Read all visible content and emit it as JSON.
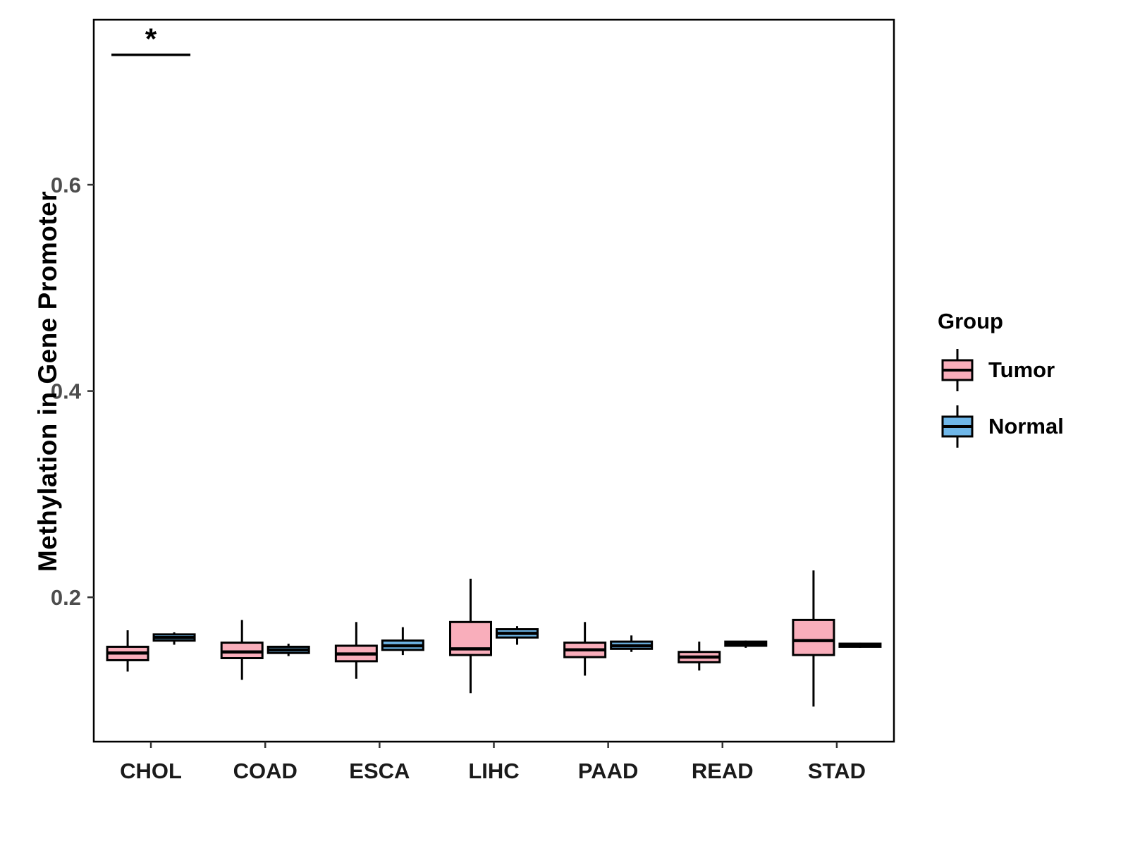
{
  "chart_data": {
    "type": "boxplot",
    "title": "",
    "xlabel": "",
    "ylabel": "Methylation in Gene Promoter",
    "ylim": [
      0.06,
      0.76
    ],
    "yticks": [
      0.2,
      0.4,
      0.6
    ],
    "ytick_labels": [
      "0.2",
      "0.4",
      "0.6"
    ],
    "categories": [
      "CHOL",
      "COAD",
      "ESCA",
      "LIHC",
      "PAAD",
      "READ",
      "STAD"
    ],
    "legend_title": "Group",
    "legend_position": "right",
    "grid": false,
    "series": [
      {
        "name": "Tumor",
        "color": "#F9AEBB",
        "stats": [
          {
            "min": 0.128,
            "q1": 0.139,
            "median": 0.146,
            "q3": 0.152,
            "max": 0.168
          },
          {
            "min": 0.12,
            "q1": 0.141,
            "median": 0.147,
            "q3": 0.156,
            "max": 0.178
          },
          {
            "min": 0.121,
            "q1": 0.138,
            "median": 0.145,
            "q3": 0.153,
            "max": 0.176
          },
          {
            "min": 0.107,
            "q1": 0.144,
            "median": 0.15,
            "q3": 0.176,
            "max": 0.218
          },
          {
            "min": 0.124,
            "q1": 0.142,
            "median": 0.149,
            "q3": 0.156,
            "max": 0.176
          },
          {
            "min": 0.129,
            "q1": 0.137,
            "median": 0.142,
            "q3": 0.147,
            "max": 0.157
          },
          {
            "min": 0.094,
            "q1": 0.144,
            "median": 0.158,
            "q3": 0.178,
            "max": 0.226
          }
        ]
      },
      {
        "name": "Normal",
        "color": "#6FB7E9",
        "stats": [
          {
            "min": 0.154,
            "q1": 0.158,
            "median": 0.161,
            "q3": 0.164,
            "max": 0.166
          },
          {
            "min": 0.143,
            "q1": 0.146,
            "median": 0.149,
            "q3": 0.152,
            "max": 0.155
          },
          {
            "min": 0.144,
            "q1": 0.149,
            "median": 0.153,
            "q3": 0.158,
            "max": 0.171
          },
          {
            "min": 0.154,
            "q1": 0.161,
            "median": 0.165,
            "q3": 0.169,
            "max": 0.172
          },
          {
            "min": 0.147,
            "q1": 0.15,
            "median": 0.153,
            "q3": 0.157,
            "max": 0.163
          },
          {
            "min": 0.151,
            "q1": 0.153,
            "median": 0.155,
            "q3": 0.157,
            "max": 0.158
          },
          {
            "min": 0.151,
            "q1": 0.152,
            "median": 0.154,
            "q3": 0.155,
            "max": 0.156
          }
        ]
      }
    ],
    "annotations": [
      {
        "type": "significance",
        "category": "CHOL",
        "label": "*",
        "y": 0.726
      }
    ]
  }
}
